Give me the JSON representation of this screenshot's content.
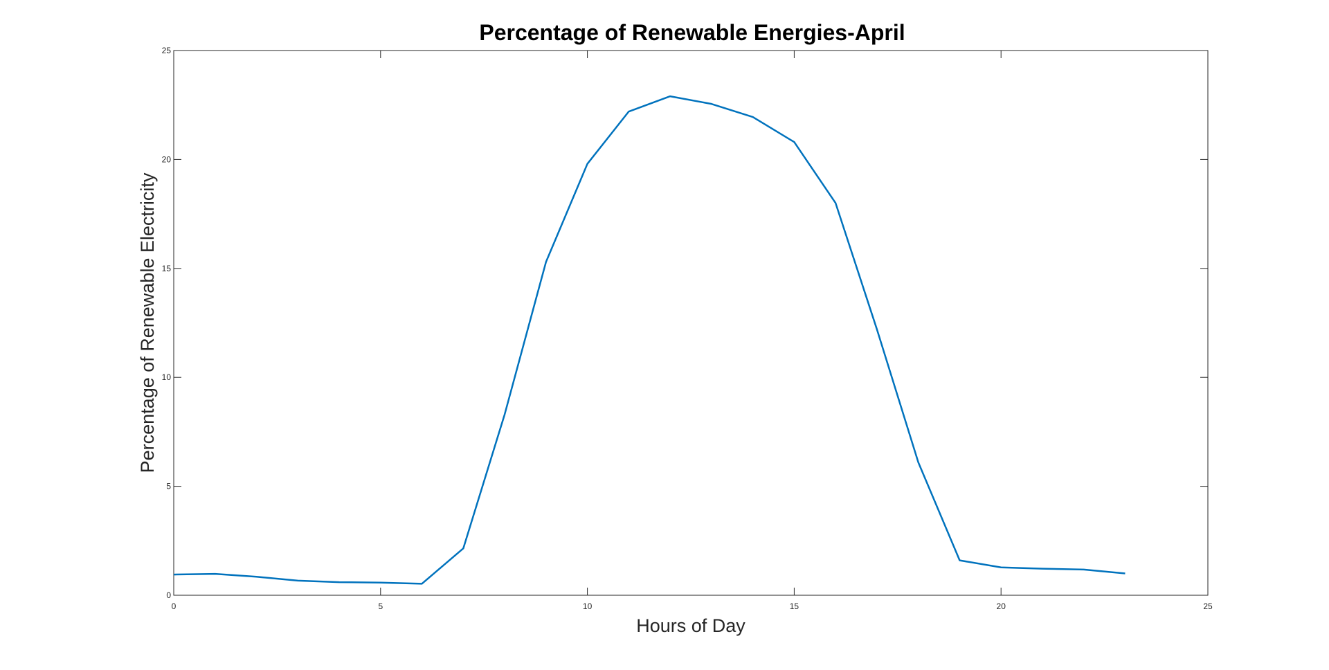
{
  "chart_data": {
    "type": "line",
    "title": "Percentage of Renewable Energies-April",
    "xlabel": "Hours of Day",
    "ylabel": "Percentage of Renewable Electricity",
    "xlim": [
      0,
      25
    ],
    "ylim": [
      0,
      25
    ],
    "x_ticks": [
      0,
      5,
      10,
      15,
      20,
      25
    ],
    "y_ticks": [
      0,
      5,
      10,
      15,
      20,
      25
    ],
    "grid": false,
    "legend": "none",
    "line_color": "#0072BD",
    "series": [
      {
        "x": [
          0,
          1,
          2,
          3,
          4,
          5,
          6,
          7,
          8,
          9,
          10,
          11,
          12,
          13,
          14,
          15,
          16,
          17,
          18,
          19,
          20,
          21,
          22,
          23
        ],
        "values": [
          0.95,
          0.98,
          0.85,
          0.67,
          0.6,
          0.58,
          0.53,
          2.15,
          8.3,
          15.3,
          19.8,
          22.2,
          22.9,
          22.55,
          21.95,
          20.8,
          18.0,
          12.2,
          6.1,
          1.6,
          1.28,
          1.22,
          1.18,
          1.0
        ]
      }
    ]
  }
}
